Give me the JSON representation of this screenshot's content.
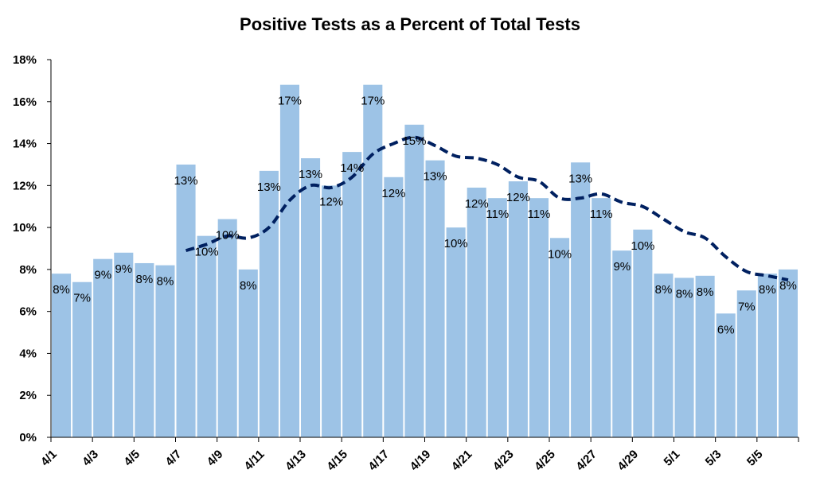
{
  "chart_data": {
    "type": "bar",
    "title": "Positive Tests as a Percent of Total Tests",
    "xlabel": "",
    "ylabel": "",
    "ylim": [
      0,
      18
    ],
    "yticks": [
      "0%",
      "2%",
      "4%",
      "6%",
      "8%",
      "10%",
      "12%",
      "14%",
      "16%",
      "18%"
    ],
    "grid": false,
    "legend": "none",
    "bar_color": "#9dc3e6",
    "line_color": "#002060",
    "categories": [
      "4/1",
      "4/2",
      "4/3",
      "4/4",
      "4/5",
      "4/6",
      "4/7",
      "4/8",
      "4/9",
      "4/10",
      "4/11",
      "4/12",
      "4/13",
      "4/14",
      "4/15",
      "4/16",
      "4/17",
      "4/18",
      "4/19",
      "4/20",
      "4/21",
      "4/22",
      "4/23",
      "4/24",
      "4/25",
      "4/26",
      "4/27",
      "4/28",
      "4/29",
      "4/30",
      "5/1",
      "5/2",
      "5/3",
      "5/4",
      "5/5",
      "5/6"
    ],
    "x_tick_labels": [
      "4/1",
      "",
      "4/3",
      "",
      "4/5",
      "",
      "4/7",
      "",
      "4/9",
      "",
      "4/11",
      "",
      "4/13",
      "",
      "4/15",
      "",
      "4/17",
      "",
      "4/19",
      "",
      "4/21",
      "",
      "4/23",
      "",
      "4/25",
      "",
      "4/27",
      "",
      "4/29",
      "",
      "5/1",
      "",
      "5/3",
      "",
      "5/5",
      ""
    ],
    "series": [
      {
        "type": "bar",
        "values": [
          7.8,
          7.4,
          8.5,
          8.8,
          8.3,
          8.2,
          13.0,
          9.6,
          10.4,
          8.0,
          12.7,
          16.8,
          13.3,
          12.0,
          13.6,
          16.8,
          12.4,
          14.9,
          13.2,
          10.0,
          11.9,
          11.4,
          12.2,
          11.4,
          9.5,
          13.1,
          11.4,
          8.9,
          9.9,
          7.8,
          7.6,
          7.7,
          5.9,
          7.0,
          7.8,
          8.0
        ],
        "data_labels": [
          "8%",
          "7%",
          "9%",
          "9%",
          "8%",
          "8%",
          "13%",
          "10%",
          "10%",
          "8%",
          "13%",
          "17%",
          "13%",
          "12%",
          "14%",
          "17%",
          "12%",
          "15%",
          "13%",
          "10%",
          "12%",
          "11%",
          "12%",
          "11%",
          "10%",
          "13%",
          "11%",
          "9%",
          "10%",
          "8%",
          "8%",
          "8%",
          "6%",
          "7%",
          "8%",
          "8%"
        ]
      },
      {
        "type": "line",
        "style": "dashed",
        "values": [
          null,
          null,
          null,
          null,
          null,
          null,
          8.9,
          9.2,
          9.6,
          9.5,
          10.0,
          11.3,
          12.0,
          11.9,
          12.4,
          13.5,
          14.0,
          14.3,
          13.9,
          13.4,
          13.3,
          13.0,
          12.4,
          12.2,
          11.4,
          11.4,
          11.6,
          11.2,
          11.0,
          10.4,
          9.8,
          9.5,
          8.6,
          7.9,
          7.7,
          7.5
        ]
      }
    ]
  }
}
